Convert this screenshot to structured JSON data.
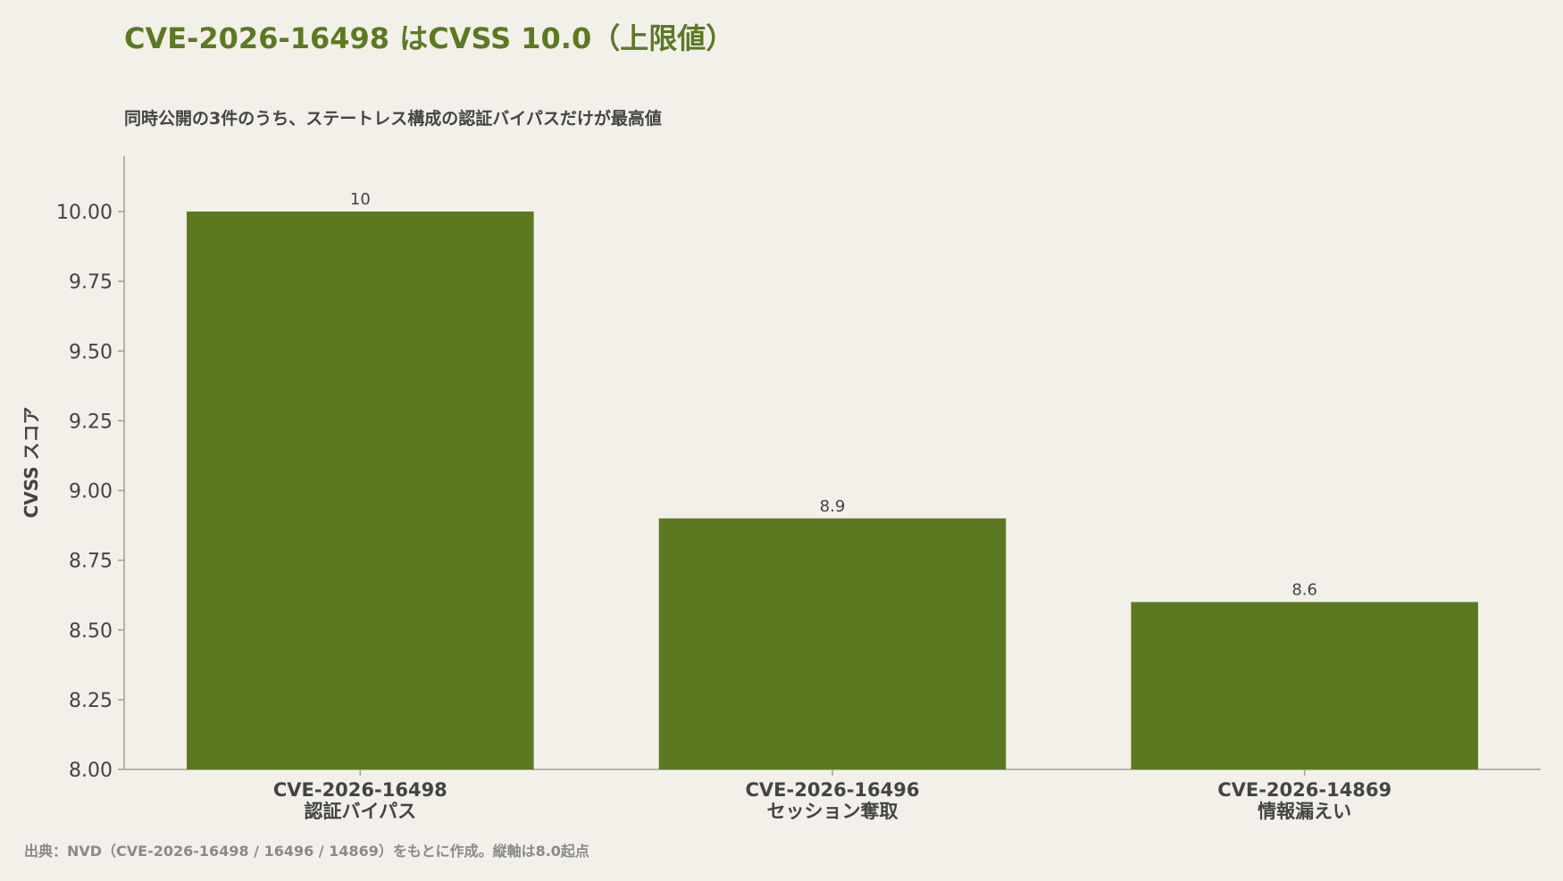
{
  "chart_data": {
    "type": "bar",
    "title": "CVE-2026-16498 はCVSS 10.0（上限値）",
    "subtitle": "同時公開の3件のうち、ステートレス構成の認証バイパスだけが最高値",
    "ylabel": "CVSS スコア",
    "xlabel": "",
    "categories": [
      {
        "id": "CVE-2026-16498",
        "desc": "認証バイパス"
      },
      {
        "id": "CVE-2026-16496",
        "desc": "セッション奪取"
      },
      {
        "id": "CVE-2026-14869",
        "desc": "情報漏えい"
      }
    ],
    "values": [
      10,
      8.9,
      8.6
    ],
    "value_labels": [
      "10",
      "8.9",
      "8.6"
    ],
    "ylim": [
      8.0,
      10.2
    ],
    "yticks": [
      "8.00",
      "8.25",
      "8.50",
      "8.75",
      "9.00",
      "9.25",
      "9.50",
      "9.75",
      "10.00"
    ],
    "grid": false,
    "legend": "none",
    "source": "出典：NVD（CVE-2026-16498 / 16496 / 14869）をもとに作成。縦軸は8.0起点",
    "colors": {
      "bar": "#5b7a20",
      "title": "#5b7a20",
      "text": "#444444",
      "axis": "#a0a090",
      "source": "#8a8a8a",
      "background": "#f3f0ea"
    }
  }
}
